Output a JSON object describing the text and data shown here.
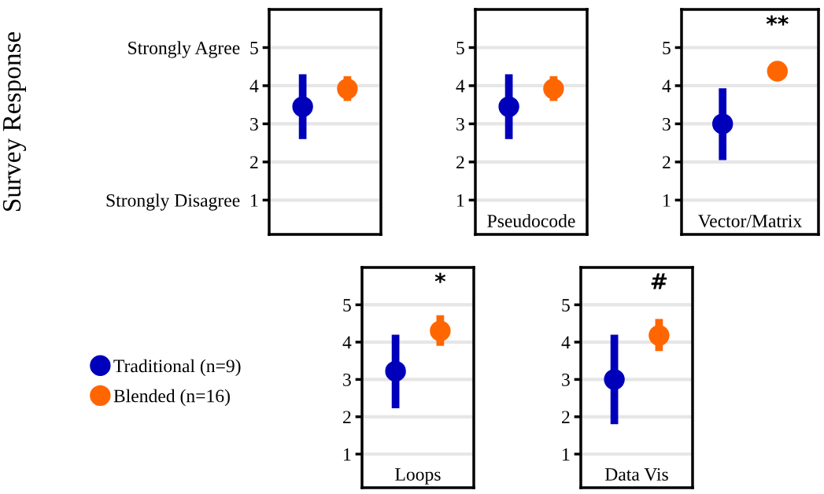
{
  "chart_data": [
    {
      "type": "scatter",
      "ylabel": "Survey Response",
      "categories": [
        null,
        null
      ],
      "ylim": [
        0.1,
        6.0
      ],
      "yticks": [
        {
          "value": 1,
          "label": "Strongly Disagree  1"
        },
        2,
        3,
        4,
        {
          "value": 5,
          "label": "Strongly Agree  5"
        }
      ],
      "grid": "y",
      "marker": "circle",
      "legend": "bottom left",
      "series": [
        {
          "name": "Traditional (n=9)",
          "color": "#0000bb",
          "values": [
            3.45,
            null
          ],
          "errors": [
            [
              2.6,
              4.3
            ],
            null
          ]
        },
        {
          "name": "Blended (n=16)",
          "color": "#ff6600",
          "values": [
            null,
            3.92
          ],
          "errors": [
            null,
            [
              3.6,
              4.25
            ]
          ]
        }
      ]
    },
    {
      "type": "scatter",
      "title": "Pseudocode",
      "categories": [
        null,
        null
      ],
      "ylim": [
        0.1,
        6.0
      ],
      "yticks": [
        1,
        2,
        3,
        4,
        5
      ],
      "grid": "y",
      "marker": "circle",
      "series": [
        {
          "color": "#0000bb",
          "values": [
            3.45,
            null
          ],
          "errors": [
            [
              2.6,
              4.3
            ],
            null
          ]
        },
        {
          "color": "#ff6600",
          "values": [
            null,
            3.92
          ],
          "errors": [
            null,
            [
              3.6,
              4.25
            ]
          ]
        }
      ]
    },
    {
      "type": "scatter",
      "title": "Vector/Matrix",
      "categories": [
        null,
        null
      ],
      "ylim": [
        0.1,
        6.0
      ],
      "yticks": [
        1,
        2,
        3,
        4,
        5
      ],
      "grid": "y",
      "marker": "circle",
      "annotations": [
        "**"
      ],
      "series": [
        {
          "color": "#0000bb",
          "values": [
            3.0,
            null
          ],
          "errors": [
            [
              2.05,
              3.93
            ],
            null
          ]
        },
        {
          "color": "#ff6600",
          "values": [
            null,
            4.38
          ],
          "errors": [
            null,
            [
              4.18,
              4.6
            ]
          ]
        }
      ]
    },
    {
      "type": "scatter",
      "title": "Loops",
      "categories": [
        null,
        null
      ],
      "ylim": [
        0.1,
        6.0
      ],
      "yticks": [
        1,
        2,
        3,
        4,
        5
      ],
      "grid": "y",
      "marker": "circle",
      "annotations": [
        "*"
      ],
      "series": [
        {
          "color": "#0000bb",
          "values": [
            3.22,
            null
          ],
          "errors": [
            [
              2.23,
              4.2
            ],
            null
          ]
        },
        {
          "color": "#ff6600",
          "values": [
            null,
            4.3
          ],
          "errors": [
            null,
            [
              3.9,
              4.72
            ]
          ]
        }
      ]
    },
    {
      "type": "scatter",
      "title": "Data Vis",
      "categories": [
        null,
        null
      ],
      "ylim": [
        0.1,
        6.0
      ],
      "yticks": [
        1,
        2,
        3,
        4,
        5
      ],
      "grid": "y",
      "marker": "circle",
      "annotations": [
        "#"
      ],
      "series": [
        {
          "color": "#0000bb",
          "values": [
            3.0,
            null
          ],
          "errors": [
            [
              1.8,
              4.2
            ],
            null
          ]
        },
        {
          "color": "#ff6600",
          "values": [
            null,
            4.18
          ],
          "errors": [
            null,
            [
              3.76,
              4.62
            ]
          ]
        }
      ]
    }
  ]
}
